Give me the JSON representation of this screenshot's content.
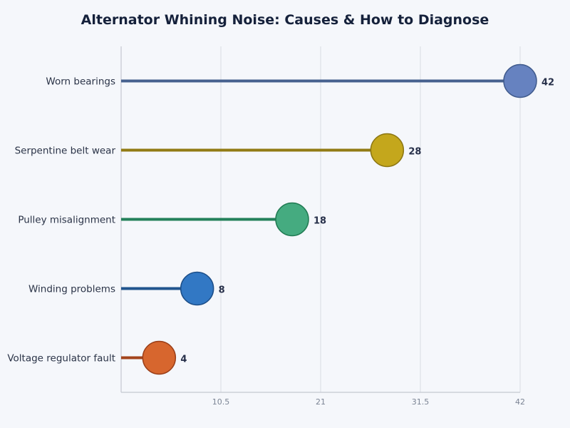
{
  "chart_data": {
    "type": "lollipop",
    "title": "Alternator Whining Noise: Causes & How to Diagnose",
    "xlabel": "",
    "ylabel": "",
    "xlim": [
      0,
      42
    ],
    "xticks": [
      "10.5",
      "21",
      "31.5",
      "42"
    ],
    "grid": true,
    "categories": [
      "Worn bearings",
      "Serpentine belt wear",
      "Pulley misalignment",
      "Winding problems",
      "Voltage regulator fault"
    ],
    "values": [
      42,
      28,
      18,
      8,
      4
    ],
    "colors": [
      {
        "line": "#46618f",
        "fill": "#6682c0",
        "stroke": "#3f5a8c"
      },
      {
        "line": "#917b14",
        "fill": "#c4a71c",
        "stroke": "#8c7612"
      },
      {
        "line": "#23805a",
        "fill": "#45ab80",
        "stroke": "#207a52"
      },
      {
        "line": "#20548e",
        "fill": "#3278c4",
        "stroke": "#1c4e88"
      },
      {
        "line": "#a3441c",
        "fill": "#d7662e",
        "stroke": "#9a3e18"
      }
    ]
  }
}
